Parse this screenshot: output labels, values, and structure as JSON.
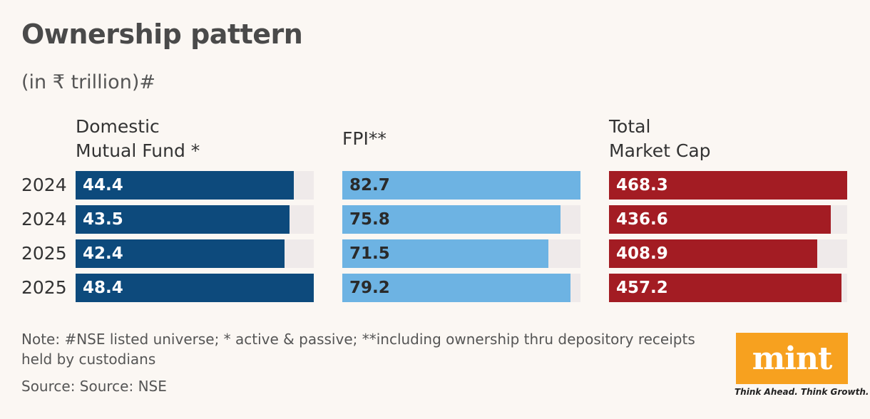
{
  "title": "Ownership pattern",
  "subtitle": "(in ₹ trillion)#",
  "note": "Note: #NSE listed universe; * active & passive; **including ownership thru depository receipts held by custodians",
  "source": "Source: Source: NSE",
  "logo": {
    "text": "mint",
    "tagline": "Think Ahead. Think Growth."
  },
  "colors": {
    "domestic": "#0d4a7c",
    "fpi": "#6db3e3",
    "total": "#a31c23",
    "track": "#efeaea",
    "background": "#fbf7f3"
  },
  "chart_data": {
    "type": "bar",
    "orientation": "horizontal",
    "categories": [
      "2024",
      "2024",
      "2025",
      "2025"
    ],
    "series": [
      {
        "name": "Domestic\nMutual Fund *",
        "values": [
          44.4,
          43.5,
          42.4,
          48.4
        ],
        "xlim": [
          0,
          48.4
        ]
      },
      {
        "name": "FPI**",
        "values": [
          82.7,
          75.8,
          71.5,
          79.2
        ],
        "xlim": [
          0,
          82.7
        ]
      },
      {
        "name": "Total\nMarket Cap",
        "values": [
          468.3,
          436.6,
          408.9,
          457.2
        ],
        "xlim": [
          0,
          468.3
        ]
      }
    ],
    "grid": false,
    "legend": "none"
  }
}
